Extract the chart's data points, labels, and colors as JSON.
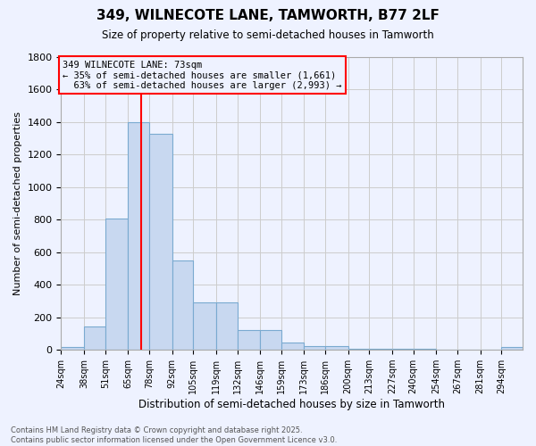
{
  "title": "349, WILNECOTE LANE, TAMWORTH, B77 2LF",
  "subtitle": "Size of property relative to semi-detached houses in Tamworth",
  "xlabel": "Distribution of semi-detached houses by size in Tamworth",
  "ylabel": "Number of semi-detached properties",
  "property_size": 73,
  "property_label": "349 WILNECOTE LANE: 73sqm",
  "pct_smaller": 35,
  "pct_larger": 63,
  "count_smaller": 1661,
  "count_larger": 2993,
  "bin_labels": [
    "24sqm",
    "38sqm",
    "51sqm",
    "65sqm",
    "78sqm",
    "92sqm",
    "105sqm",
    "119sqm",
    "132sqm",
    "146sqm",
    "159sqm",
    "173sqm",
    "186sqm",
    "200sqm",
    "213sqm",
    "227sqm",
    "240sqm",
    "254sqm",
    "267sqm",
    "281sqm",
    "294sqm"
  ],
  "bin_edges": [
    24,
    38,
    51,
    65,
    78,
    92,
    105,
    119,
    132,
    146,
    159,
    173,
    186,
    200,
    213,
    227,
    240,
    254,
    267,
    281,
    294
  ],
  "bar_values": [
    20,
    145,
    810,
    1400,
    1330,
    550,
    290,
    290,
    120,
    120,
    45,
    25,
    25,
    5,
    5,
    5,
    5,
    0,
    0,
    0,
    15
  ],
  "bar_color": "#c8d8f0",
  "bar_edge_color": "#7aaad0",
  "vline_x": 73,
  "vline_color": "red",
  "annotation_box_color": "red",
  "ylim": [
    0,
    1800
  ],
  "yticks": [
    0,
    200,
    400,
    600,
    800,
    1000,
    1200,
    1400,
    1600,
    1800
  ],
  "grid_color": "#cccccc",
  "bg_color": "#eef2ff",
  "footer_line1": "Contains HM Land Registry data © Crown copyright and database right 2025.",
  "footer_line2": "Contains public sector information licensed under the Open Government Licence v3.0."
}
